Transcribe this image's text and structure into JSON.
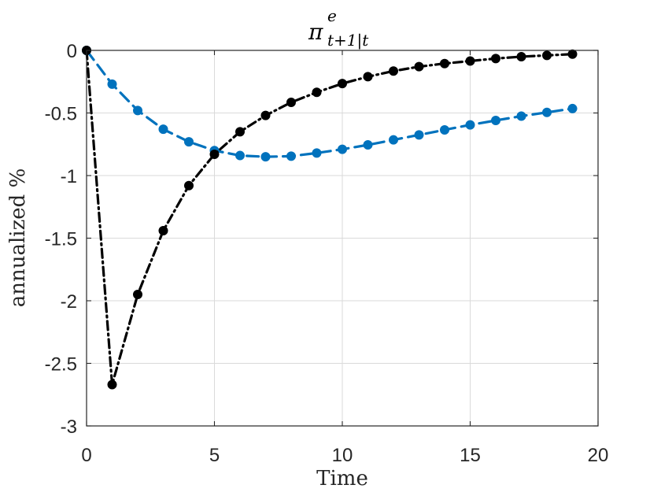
{
  "chart_data": {
    "type": "line",
    "title": {
      "base": "π",
      "superscript": "e",
      "subscript": "t+1|t"
    },
    "xlabel": "Time",
    "ylabel": "annualized %",
    "xlim": [
      0,
      20
    ],
    "ylim": [
      -3,
      0
    ],
    "xticks": [
      0,
      5,
      10,
      15,
      20
    ],
    "xtick_labels": [
      "0",
      "5",
      "10",
      "15",
      "20"
    ],
    "yticks": [
      0,
      -0.5,
      -1,
      -1.5,
      -2,
      -2.5,
      -3
    ],
    "ytick_labels": [
      "0",
      "-0.5",
      "-1",
      "-1.5",
      "-2",
      "-2.5",
      "-3"
    ],
    "grid": true,
    "series": [
      {
        "name": "series-1",
        "color": "#0072bd",
        "line_style": "dashed",
        "x": [
          0,
          1,
          2,
          3,
          4,
          5,
          6,
          7,
          8,
          9,
          10,
          11,
          12,
          13,
          14,
          15,
          16,
          17,
          18,
          19
        ],
        "values": [
          0,
          -0.27,
          -0.48,
          -0.63,
          -0.73,
          -0.8,
          -0.84,
          -0.85,
          -0.845,
          -0.82,
          -0.79,
          -0.755,
          -0.715,
          -0.675,
          -0.635,
          -0.595,
          -0.56,
          -0.525,
          -0.495,
          -0.465
        ]
      },
      {
        "name": "series-2",
        "color": "#000000",
        "line_style": "dash-dot",
        "x": [
          0,
          1,
          2,
          3,
          4,
          5,
          6,
          7,
          8,
          9,
          10,
          11,
          12,
          13,
          14,
          15,
          16,
          17,
          18,
          19
        ],
        "values": [
          0,
          -2.67,
          -1.95,
          -1.44,
          -1.08,
          -0.83,
          -0.65,
          -0.52,
          -0.415,
          -0.335,
          -0.265,
          -0.21,
          -0.165,
          -0.13,
          -0.105,
          -0.085,
          -0.065,
          -0.05,
          -0.04,
          -0.03
        ]
      }
    ]
  }
}
